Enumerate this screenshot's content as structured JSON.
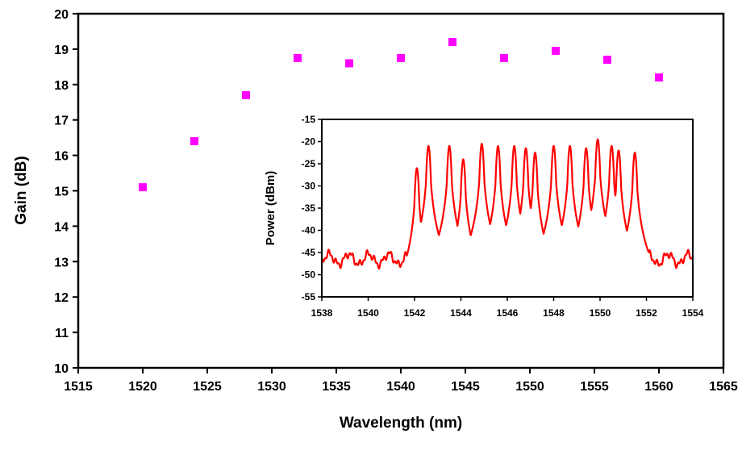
{
  "chart_data": [
    {
      "id": "main",
      "type": "scatter",
      "title": "",
      "xlabel": "Wavelength (nm)",
      "ylabel": "Gain (dB)",
      "xlim": [
        1515,
        1565
      ],
      "ylim": [
        10,
        20
      ],
      "xticks": [
        1515,
        1520,
        1525,
        1530,
        1535,
        1540,
        1545,
        1550,
        1555,
        1560,
        1565
      ],
      "yticks": [
        10,
        11,
        12,
        13,
        14,
        15,
        16,
        17,
        18,
        19,
        20
      ],
      "grid": false,
      "marker_color": "#ff00ff",
      "series": [
        {
          "x": [
            1520,
            1524,
            1528,
            1532,
            1536,
            1540,
            1544,
            1548,
            1552,
            1556,
            1560
          ],
          "y": [
            15.1,
            16.4,
            17.7,
            18.75,
            18.6,
            18.75,
            19.2,
            18.75,
            18.95,
            18.7,
            18.2
          ]
        }
      ]
    },
    {
      "id": "inset",
      "type": "line",
      "title": "",
      "xlabel": "",
      "ylabel": "Power (dBm)",
      "xlim": [
        1538,
        1554
      ],
      "ylim": [
        -55,
        -15
      ],
      "xticks": [
        1538,
        1540,
        1542,
        1544,
        1546,
        1548,
        1550,
        1552,
        1554
      ],
      "yticks": [
        -15,
        -20,
        -25,
        -30,
        -35,
        -40,
        -45,
        -50,
        -55
      ],
      "grid": false,
      "line_color": "#ff0000",
      "noise_floor_dbm": -46.5,
      "peaks": [
        {
          "x": 1542.1,
          "y": -26
        },
        {
          "x": 1542.6,
          "y": -21
        },
        {
          "x": 1543.5,
          "y": -21
        },
        {
          "x": 1544.1,
          "y": -24
        },
        {
          "x": 1544.9,
          "y": -20.5
        },
        {
          "x": 1545.6,
          "y": -21
        },
        {
          "x": 1546.3,
          "y": -21
        },
        {
          "x": 1546.8,
          "y": -21.5
        },
        {
          "x": 1547.2,
          "y": -22.5
        },
        {
          "x": 1548.0,
          "y": -21
        },
        {
          "x": 1548.7,
          "y": -21
        },
        {
          "x": 1549.4,
          "y": -21.5
        },
        {
          "x": 1549.9,
          "y": -19.5
        },
        {
          "x": 1550.5,
          "y": -21
        },
        {
          "x": 1550.8,
          "y": -22
        },
        {
          "x": 1551.5,
          "y": -22.5
        }
      ]
    }
  ]
}
